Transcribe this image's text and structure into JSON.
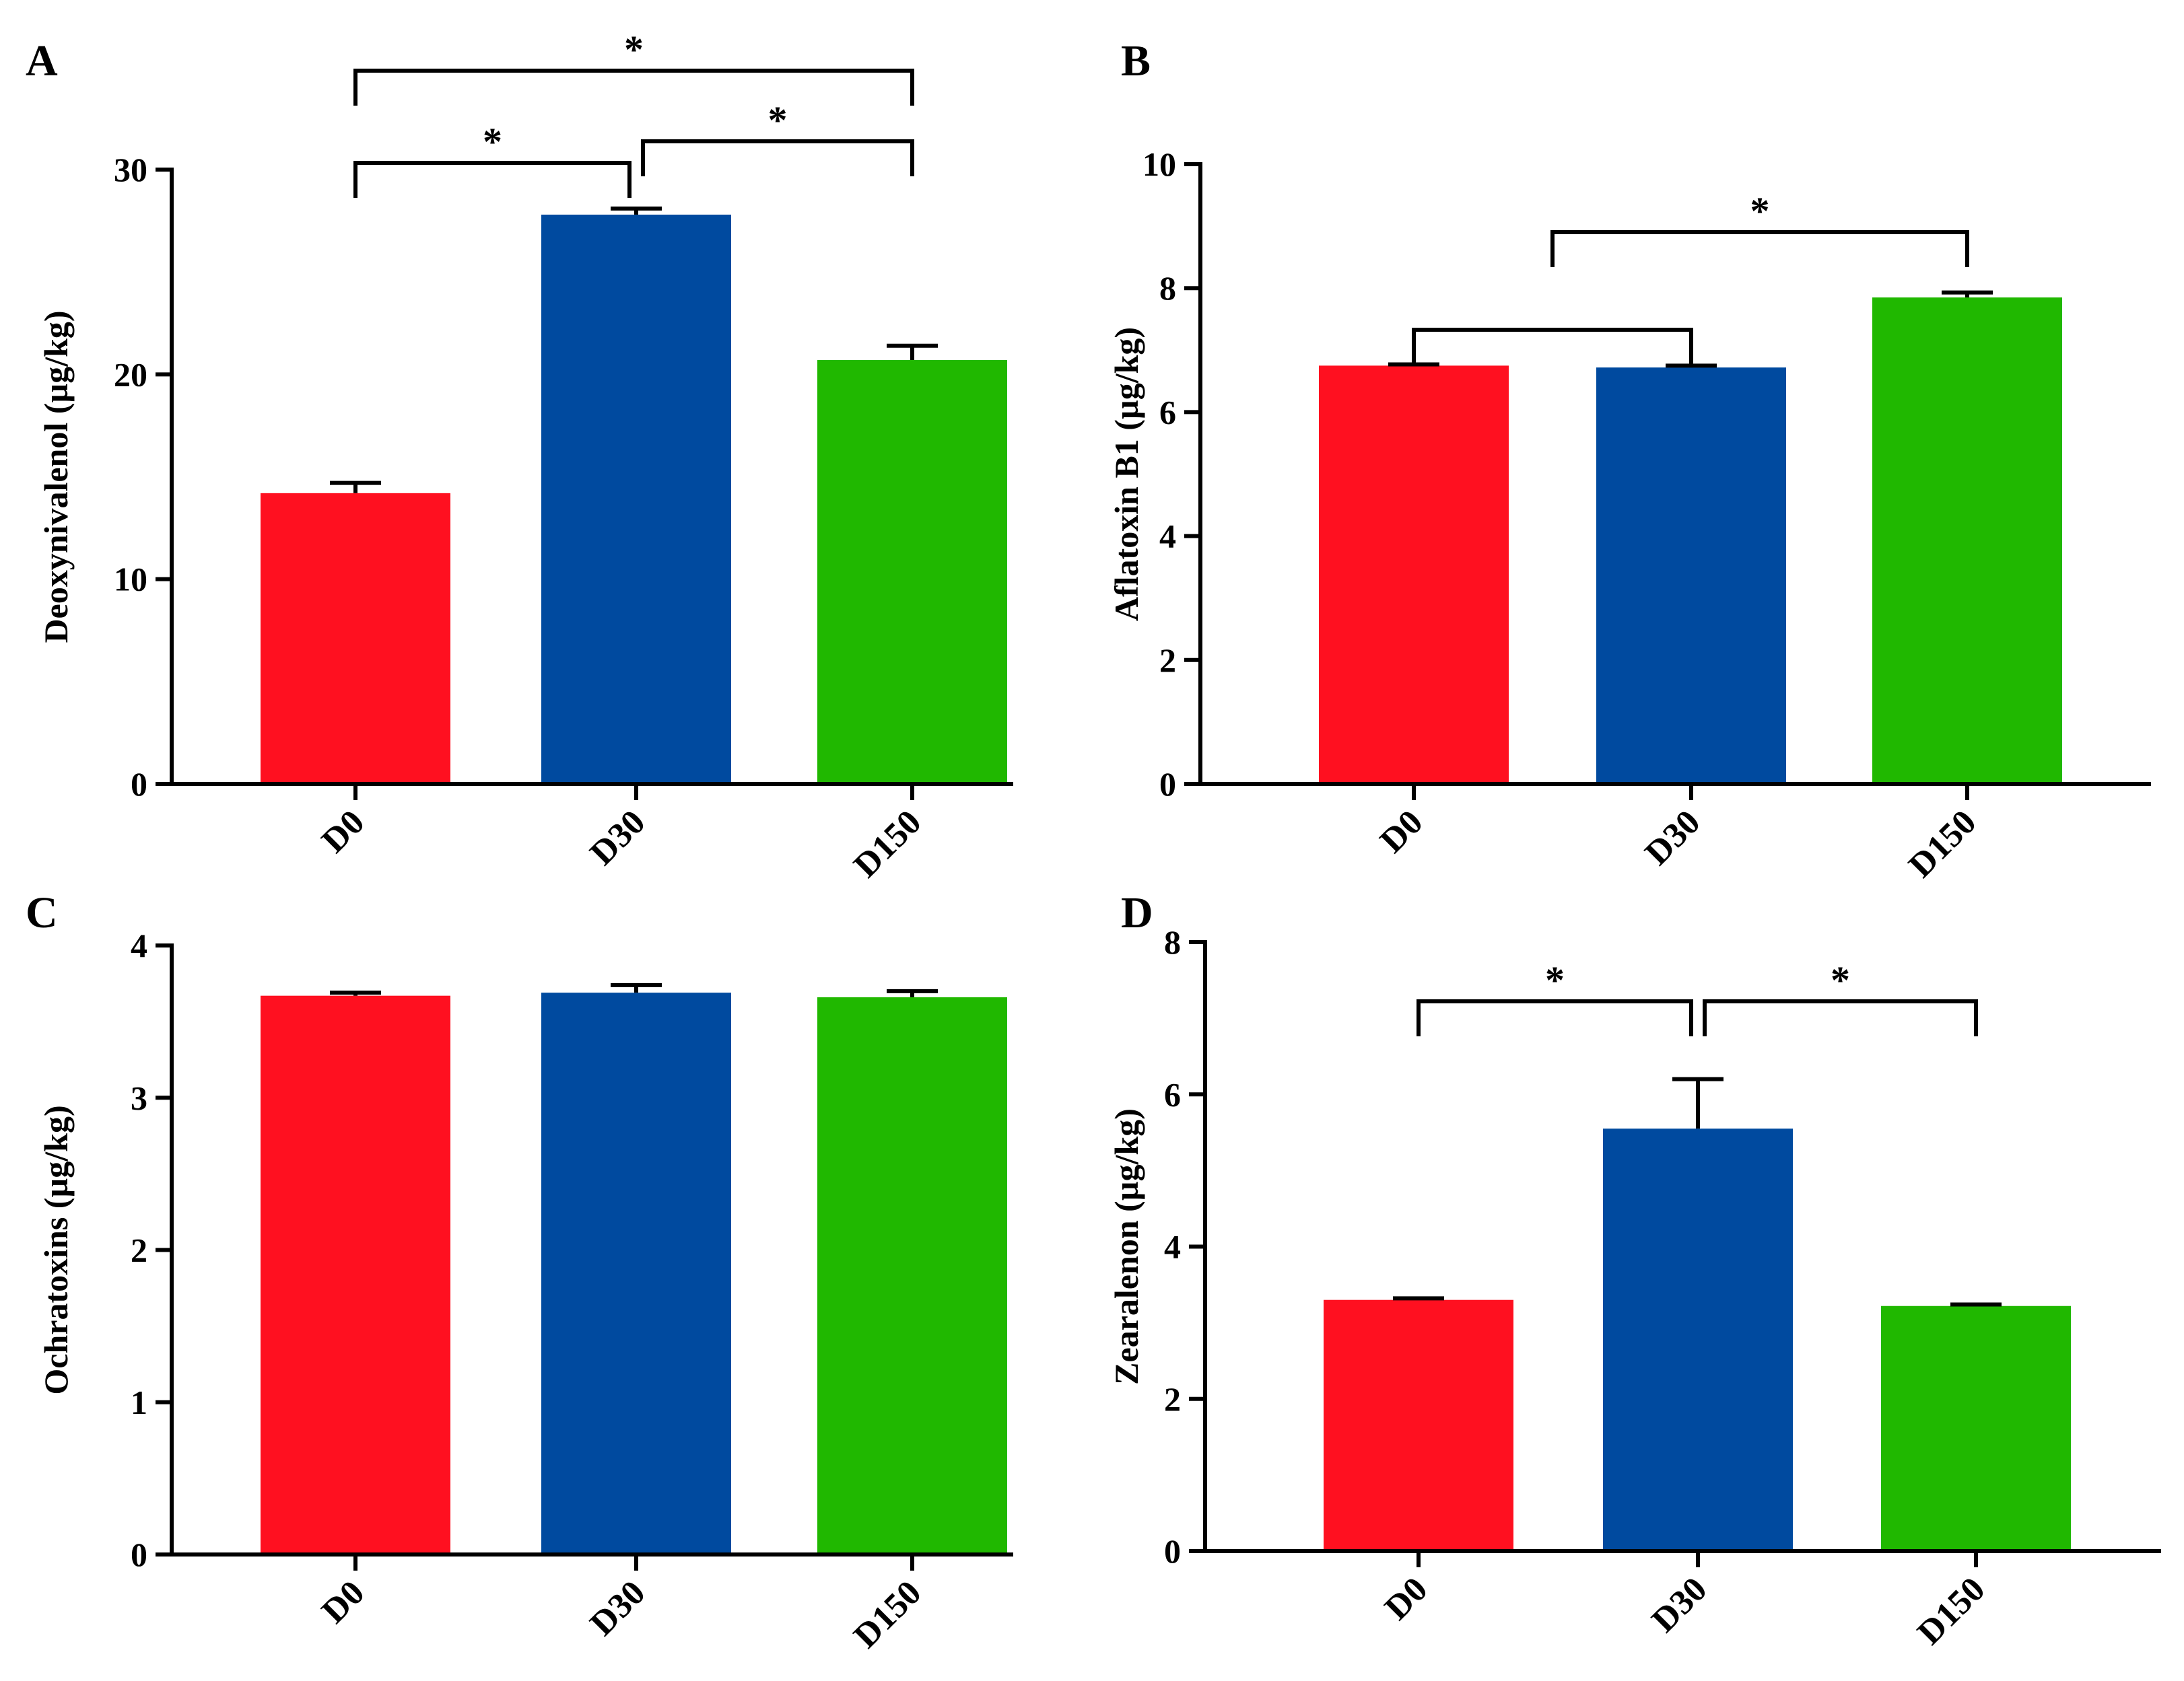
{
  "chart_data": [
    {
      "panel": "A",
      "type": "bar",
      "categories": [
        "D0",
        "D30",
        "D150"
      ],
      "values": [
        14.2,
        27.8,
        20.7
      ],
      "errors": [
        0.5,
        0.3,
        0.7
      ],
      "colors": [
        "#ff1020",
        "#004a9f",
        "#20b800"
      ],
      "ylabel": "Deoxynivalenol (µg/kg)",
      "ylim": [
        0,
        30
      ],
      "yticks": [
        0,
        10,
        20,
        30
      ],
      "significance": [
        {
          "from": 0,
          "to": 1,
          "label": "*"
        },
        {
          "from": 1,
          "to": 2,
          "label": "*"
        },
        {
          "from": 0,
          "to": 2,
          "label": "*"
        }
      ]
    },
    {
      "panel": "B",
      "type": "bar",
      "categories": [
        "D0",
        "D30",
        "D150"
      ],
      "values": [
        6.75,
        6.72,
        7.85
      ],
      "errors": [
        0.02,
        0.03,
        0.08
      ],
      "colors": [
        "#ff1020",
        "#004a9f",
        "#20b800"
      ],
      "ylabel": "Aflatoxin B1 (µg/kg)",
      "ylim": [
        0,
        10
      ],
      "yticks": [
        0,
        2,
        4,
        6,
        8,
        10
      ],
      "significance": [
        {
          "from": 0,
          "to": 1,
          "label": ""
        },
        {
          "from": 0.5,
          "to": 2,
          "label": "*"
        }
      ]
    },
    {
      "panel": "C",
      "type": "bar",
      "categories": [
        "D0",
        "D30",
        "D150"
      ],
      "values": [
        3.67,
        3.69,
        3.66
      ],
      "errors": [
        0.02,
        0.05,
        0.04
      ],
      "colors": [
        "#ff1020",
        "#004a9f",
        "#20b800"
      ],
      "ylabel": "Ochratoxins (µg/kg)",
      "ylim": [
        0,
        4
      ],
      "yticks": [
        0,
        1,
        2,
        3,
        4
      ],
      "significance": []
    },
    {
      "panel": "D",
      "type": "bar",
      "categories": [
        "D0",
        "D30",
        "D150"
      ],
      "values": [
        3.3,
        5.55,
        3.22
      ],
      "errors": [
        0.02,
        0.65,
        0.02
      ],
      "colors": [
        "#ff1020",
        "#004a9f",
        "#20b800"
      ],
      "ylabel": "Zearalenon (µg/kg)",
      "ylim": [
        0,
        8
      ],
      "yticks": [
        0,
        2,
        4,
        6,
        8
      ],
      "significance": [
        {
          "from": 0,
          "to": 1,
          "label": "*"
        },
        {
          "from": 1,
          "to": 2,
          "label": "*"
        }
      ]
    }
  ]
}
